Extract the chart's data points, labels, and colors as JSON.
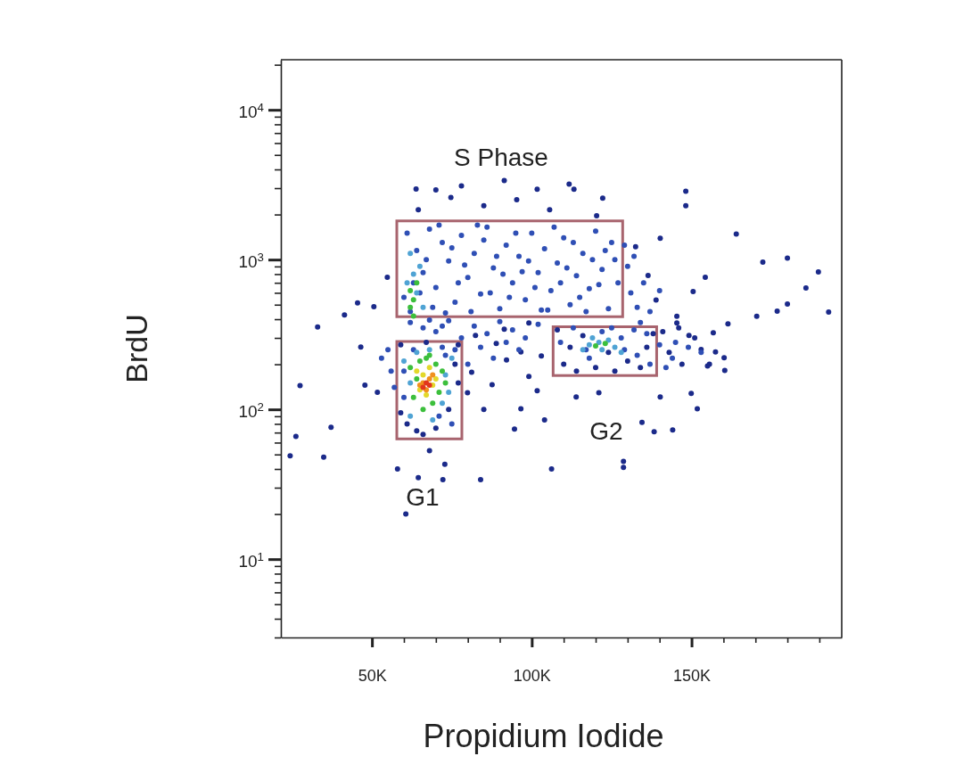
{
  "chart_data": {
    "type": "scatter",
    "xlabel": "Propidium Iodide",
    "ylabel": "BrdU",
    "log": "y",
    "marker": "circle",
    "xlim": [
      21500,
      197000
    ],
    "ylim": [
      3,
      21600
    ],
    "xticks": [
      {
        "value": 50000,
        "label": "50K"
      },
      {
        "value": 60000,
        "label": null
      },
      {
        "value": 70000,
        "label": null
      },
      {
        "value": 80000,
        "label": null
      },
      {
        "value": 90000,
        "label": null
      },
      {
        "value": 100000,
        "label": "100K"
      },
      {
        "value": 110000,
        "label": null
      },
      {
        "value": 120000,
        "label": null
      },
      {
        "value": 130000,
        "label": null
      },
      {
        "value": 140000,
        "label": null
      },
      {
        "value": 150000,
        "label": "150K"
      },
      {
        "value": 160000,
        "label": null
      },
      {
        "value": 170000,
        "label": null
      },
      {
        "value": 180000,
        "label": null
      },
      {
        "value": 190000,
        "label": null
      }
    ],
    "yticks": [
      {
        "value": 3,
        "label": null
      },
      {
        "value": 4,
        "label": null
      },
      {
        "value": 5,
        "label": null
      },
      {
        "value": 6,
        "label": null
      },
      {
        "value": 7,
        "label": null
      },
      {
        "value": 8,
        "label": null
      },
      {
        "value": 9,
        "label": null
      },
      {
        "value": 10,
        "label": "10$^{1}$"
      },
      {
        "value": 20,
        "label": null
      },
      {
        "value": 30,
        "label": null
      },
      {
        "value": 40,
        "label": null
      },
      {
        "value": 50,
        "label": null
      },
      {
        "value": 60,
        "label": null
      },
      {
        "value": 70,
        "label": null
      },
      {
        "value": 80,
        "label": null
      },
      {
        "value": 90,
        "label": null
      },
      {
        "value": 100,
        "label": "10$^{2}$"
      },
      {
        "value": 200,
        "label": null
      },
      {
        "value": 300,
        "label": null
      },
      {
        "value": 400,
        "label": null
      },
      {
        "value": 500,
        "label": null
      },
      {
        "value": 600,
        "label": null
      },
      {
        "value": 700,
        "label": null
      },
      {
        "value": 800,
        "label": null
      },
      {
        "value": 900,
        "label": null
      },
      {
        "value": 1000,
        "label": "10$^{3}$"
      },
      {
        "value": 2000,
        "label": null
      },
      {
        "value": 3000,
        "label": null
      },
      {
        "value": 4000,
        "label": null
      },
      {
        "value": 5000,
        "label": null
      },
      {
        "value": 6000,
        "label": null
      },
      {
        "value": 7000,
        "label": null
      },
      {
        "value": 8000,
        "label": null
      },
      {
        "value": 9000,
        "label": null
      },
      {
        "value": 10000,
        "label": "10$^{4}$"
      },
      {
        "value": 20000,
        "label": null
      }
    ],
    "annotations": [
      "S Phase",
      "G1",
      "G2"
    ],
    "series": [
      {
        "color": "#1b2a8a",
        "x": [
          27500,
          26200,
          24400,
          34900,
          37200,
          46500,
          33000,
          47800,
          51700,
          41400,
          45500,
          50600,
          54800,
          63800,
          70000,
          78000,
          91400,
          101700,
          111700,
          122200,
          148200,
          148200,
          164000,
          154300,
          172300,
          180000,
          189700,
          192900,
          185800,
          176800,
          170400,
          161400,
          180000,
          64500,
          74700,
          85000,
          95300,
          105600,
          113200,
          120300,
          132500,
          140200,
          136400,
          138900,
          150500,
          145400,
          156800,
          153000,
          160200,
          58000,
          64500,
          72200,
          72800,
          60600,
          84000,
          68000,
          85000,
          96600,
          94600,
          104000,
          106200,
          128700,
          128700,
          138300,
          144100,
          151800,
          149900,
          134500,
          113900,
          121000,
          140200,
          155600,
          160400,
          157500,
          149200,
          145400,
          101700,
          99100,
          87600,
          79900,
          81200,
          92100,
          96600,
          88900,
          82400,
          91400,
          99100,
          103000,
          108000,
          110000,
          112000,
          114000,
          116000,
          120000,
          124000,
          126000,
          130000,
          134000,
          136000,
          138000,
          141000,
          143000,
          147000,
          146000,
          151000,
          155000,
          59000,
          61000,
          64000,
          67000,
          70000,
          74000,
          76000,
          77000,
          66000,
          59000,
          77000
        ],
        "values": [
          144,
          66,
          49,
          48,
          76,
          261,
          355,
          145,
          130,
          427,
          514,
          484,
          762,
          2960,
          2920,
          3110,
          3370,
          2950,
          3190,
          2570,
          2860,
          2290,
          1480,
          762,
          963,
          1024,
          828,
          447,
          646,
          452,
          418,
          373,
          505,
          2150,
          2600,
          2290,
          2510,
          2150,
          2950,
          1960,
          1220,
          1390,
          783,
          537,
          612,
          418,
          325,
          251,
          221,
          40,
          35,
          34,
          43,
          20,
          34,
          53,
          100,
          101,
          74,
          85,
          40,
          45,
          41,
          71,
          73,
          101,
          128,
          82,
          121,
          129,
          121,
          200,
          182,
          242,
          312,
          377,
          133,
          166,
          146,
          129,
          177,
          214,
          242,
          275,
          312,
          343,
          377,
          227,
          340,
          200,
          260,
          180,
          310,
          190,
          240,
          180,
          210,
          190,
          260,
          320,
          330,
          240,
          200,
          350,
          300,
          195,
          270,
          80,
          72,
          280,
          75,
          100,
          200,
          150,
          68,
          95,
          270
        ]
      },
      {
        "color": "#2f4fb5",
        "x": [
          61000,
          64000,
          66000,
          68000,
          70000,
          72000,
          74000,
          76000,
          78000,
          80000,
          82000,
          84000,
          86000,
          88000,
          90000,
          92000,
          94000,
          96000,
          98000,
          100000,
          102000,
          104000,
          106000,
          108000,
          110000,
          112000,
          114000,
          116000,
          118000,
          120000,
          122000,
          124000,
          126000,
          127000,
          60000,
          62000,
          65000,
          69000,
          73000,
          77000,
          81000,
          85000,
          89000,
          93000,
          97000,
          101000,
          105000,
          109000,
          113000,
          117000,
          121000,
          125000,
          63000,
          67000,
          71000,
          75000,
          79000,
          83000,
          87000,
          91000,
          95000,
          99000,
          103000,
          107000,
          111000,
          115000,
          119000,
          123000,
          62000,
          66000,
          70000,
          74000,
          78000,
          82000,
          86000,
          90000,
          94000,
          98000,
          102000,
          76000,
          84000,
          88000,
          80000,
          92000,
          68000,
          96000,
          72000,
          130000,
          131000,
          133000,
          135000,
          129000,
          132000,
          137000,
          140000,
          134000,
          136000,
          118000,
          122000,
          128000,
          132000,
          109000,
          113000,
          117000,
          125000,
          129000,
          133000,
          137000,
          145000,
          142000,
          149000,
          144000,
          140000,
          153000,
          60000,
          63000,
          72000,
          75000,
          60000,
          71000,
          73000,
          55000,
          56000,
          53000,
          57000
        ],
        "values": [
          1500,
          1150,
          820,
          1600,
          650,
          1300,
          980,
          520,
          1450,
          760,
          1100,
          590,
          1650,
          880,
          470,
          1250,
          700,
          1050,
          540,
          1500,
          820,
          1180,
          620,
          950,
          1400,
          500,
          780,
          1100,
          640,
          1550,
          860,
          470,
          1000,
          700,
          560,
          450,
          600,
          480,
          440,
          700,
          450,
          1350,
          1050,
          560,
          830,
          650,
          460,
          700,
          1300,
          450,
          680,
          1300,
          700,
          1000,
          1700,
          1200,
          920,
          1700,
          600,
          800,
          1500,
          980,
          460,
          1650,
          880,
          560,
          1000,
          1150,
          380,
          350,
          330,
          390,
          300,
          360,
          320,
          385,
          340,
          300,
          370,
          250,
          260,
          220,
          200,
          280,
          395,
          250,
          360,
          900,
          600,
          480,
          700,
          1250,
          1050,
          450,
          620,
          380,
          320,
          220,
          330,
          300,
          340,
          280,
          350,
          250,
          350,
          250,
          230,
          200,
          280,
          190,
          260,
          220,
          270,
          240,
          120,
          250,
          260,
          80,
          180,
          90,
          230,
          250,
          180,
          220,
          140
        ]
      },
      {
        "color": "#4fa3d4",
        "x": [
          62000,
          63000,
          64000,
          65000,
          61000,
          66000,
          118000,
          121000,
          124000,
          126000,
          116000,
          128000,
          122000,
          119000,
          60000,
          62000,
          64000,
          69000,
          73000,
          74000,
          62000,
          72000,
          68000,
          75000
        ],
        "values": [
          1100,
          800,
          600,
          900,
          700,
          480,
          270,
          280,
          290,
          260,
          250,
          240,
          250,
          300,
          210,
          90,
          240,
          85,
          170,
          130,
          150,
          110,
          250,
          220
        ]
      },
      {
        "color": "#3cbf3c",
        "x": [
          62000,
          63000,
          65000,
          66000,
          68000,
          70000,
          71000,
          72000,
          64000,
          69000,
          67000,
          73000,
          62000,
          63000,
          64000,
          62000,
          63000,
          123000,
          120000
        ],
        "values": [
          190,
          120,
          210,
          100,
          230,
          200,
          130,
          180,
          160,
          110,
          220,
          150,
          620,
          540,
          700,
          480,
          420,
          275,
          265
        ]
      },
      {
        "color": "#e3d82a",
        "x": [
          64000,
          66000,
          68000,
          67000,
          70000,
          65000,
          69000
        ],
        "values": [
          180,
          170,
          190,
          125,
          160,
          135,
          145
        ]
      },
      {
        "color": "#f0901e",
        "x": [
          66000,
          68000,
          65000,
          67000,
          69000
        ],
        "values": [
          150,
          160,
          145,
          135,
          170
        ]
      },
      {
        "color": "#e2361c",
        "x": [
          67000,
          66000,
          68000
        ],
        "values": [
          150,
          140,
          145
        ]
      }
    ]
  }
}
